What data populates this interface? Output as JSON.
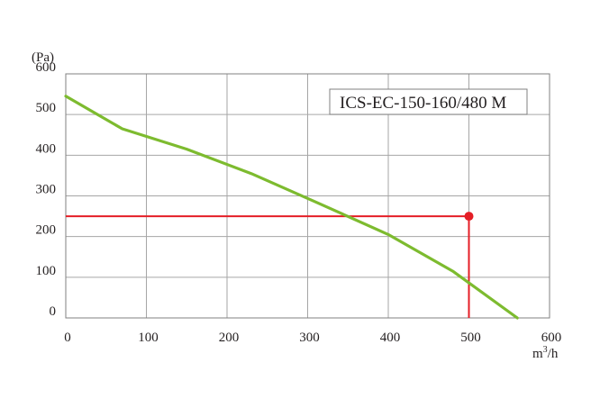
{
  "chart_data": {
    "type": "line",
    "model_label": "ICS-EC-150-160/480 M",
    "y_unit": "(Pa)",
    "x_unit_base": "m",
    "x_unit_sup": "3",
    "x_unit_tail": "/h",
    "xlim": [
      0,
      600
    ],
    "ylim": [
      0,
      600
    ],
    "x_ticks": [
      0,
      100,
      200,
      300,
      400,
      500,
      600
    ],
    "y_ticks": [
      0,
      100,
      200,
      300,
      400,
      500,
      600
    ],
    "grid": true,
    "series": [
      {
        "color": "#7dbb2f",
        "x": [
          0,
          70,
          150,
          230,
          310,
          400,
          480,
          560
        ],
        "y": [
          545,
          465,
          415,
          355,
          285,
          205,
          115,
          0
        ]
      }
    ],
    "operating_point": {
      "x": 500,
      "y": 250,
      "color": "#e41e26"
    }
  }
}
